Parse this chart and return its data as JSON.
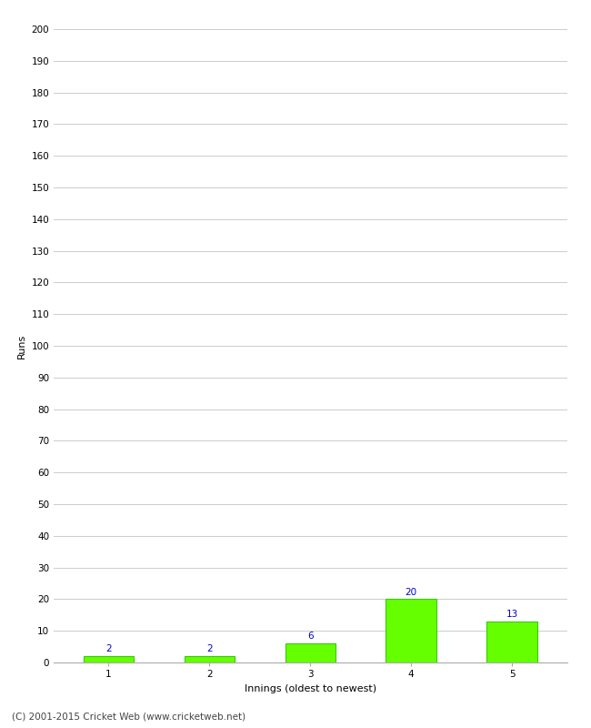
{
  "categories": [
    "1",
    "2",
    "3",
    "4",
    "5"
  ],
  "values": [
    2,
    2,
    6,
    20,
    13
  ],
  "bar_color": "#66ff00",
  "bar_edge_color": "#33cc00",
  "label_color": "#0000cc",
  "xlabel": "Innings (oldest to newest)",
  "ylabel": "Runs",
  "ylim": [
    0,
    200
  ],
  "yticks": [
    0,
    10,
    20,
    30,
    40,
    50,
    60,
    70,
    80,
    90,
    100,
    110,
    120,
    130,
    140,
    150,
    160,
    170,
    180,
    190,
    200
  ],
  "grid_color": "#cccccc",
  "background_color": "#ffffff",
  "footer_text": "(C) 2001-2015 Cricket Web (www.cricketweb.net)",
  "label_fontsize": 7.5,
  "axis_label_fontsize": 8,
  "tick_fontsize": 7.5,
  "footer_fontsize": 7.5,
  "bar_width": 0.5
}
